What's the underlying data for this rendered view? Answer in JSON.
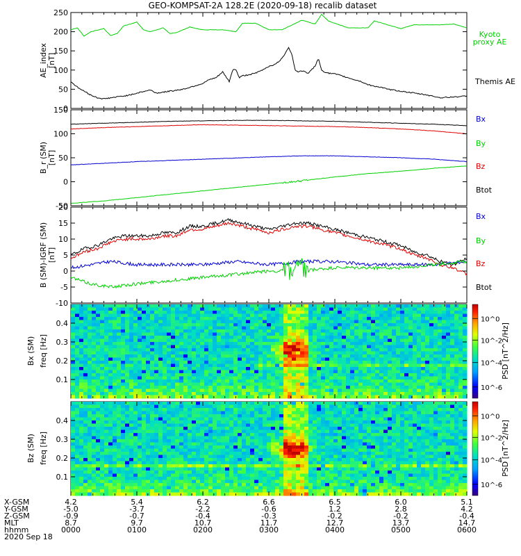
{
  "title": "GEO-KOMPSAT-2A 128.2E (2020-09-18) recalib dataset",
  "colors": {
    "black": "#000000",
    "red": "#e00000",
    "green": "#00d000",
    "blue": "#0000d0"
  },
  "chart_data": [
    {
      "type": "line",
      "panel": "ae",
      "ylabel": "AE_index [nT]",
      "ylim": [
        0,
        250
      ],
      "yticks": [
        "0",
        "50",
        "100",
        "150",
        "200",
        "250"
      ],
      "xlim_hours": [
        0,
        6
      ],
      "series": [
        {
          "name": "Kyoto proxy AE",
          "color": "green",
          "x": [
            0,
            0.1,
            0.2,
            0.3,
            0.5,
            0.6,
            0.7,
            0.8,
            1.0,
            1.1,
            1.2,
            1.4,
            1.5,
            1.6,
            1.8,
            2.0,
            2.3,
            2.5,
            2.6,
            2.8,
            3.0,
            3.2,
            3.5,
            3.7,
            3.8,
            3.9,
            4.0,
            4.2,
            4.5,
            4.6,
            5.0,
            5.2,
            5.4,
            5.6,
            5.8,
            6.0
          ],
          "y": [
            205,
            210,
            188,
            200,
            208,
            190,
            195,
            215,
            225,
            205,
            200,
            210,
            195,
            198,
            212,
            205,
            205,
            200,
            222,
            222,
            205,
            205,
            230,
            220,
            245,
            228,
            222,
            210,
            210,
            228,
            208,
            218,
            218,
            218,
            220,
            210
          ]
        },
        {
          "name": "Themis AE",
          "color": "black",
          "x": [
            0,
            0.1,
            0.2,
            0.3,
            0.4,
            0.5,
            0.7,
            0.9,
            1.0,
            1.2,
            1.3,
            1.5,
            1.7,
            1.8,
            1.9,
            2.0,
            2.05,
            2.1,
            2.2,
            2.3,
            2.4,
            2.45,
            2.5,
            2.55,
            2.6,
            2.7,
            2.8,
            2.9,
            3.0,
            3.1,
            3.2,
            3.3,
            3.35,
            3.4,
            3.45,
            3.5,
            3.6,
            3.7,
            3.75,
            3.8,
            3.85,
            3.9,
            4.0,
            4.1,
            4.2,
            4.4,
            4.5,
            4.6,
            4.7,
            4.8,
            5.0,
            5.2,
            5.4,
            5.6,
            5.8,
            6.0
          ],
          "y": [
            70,
            55,
            45,
            35,
            28,
            25,
            30,
            35,
            40,
            48,
            40,
            45,
            50,
            55,
            60,
            65,
            70,
            75,
            80,
            95,
            70,
            100,
            102,
            80,
            85,
            88,
            92,
            100,
            110,
            115,
            130,
            160,
            140,
            100,
            95,
            98,
            92,
            110,
            130,
            100,
            95,
            92,
            90,
            85,
            80,
            70,
            62,
            58,
            55,
            50,
            45,
            40,
            35,
            28,
            30,
            32
          ]
        }
      ]
    },
    {
      "type": "line",
      "panel": "b",
      "ylabel": "B_r (SM) [nT]",
      "ylim": [
        -50,
        150
      ],
      "yticks": [
        "-50",
        "0",
        "50",
        "100",
        "150"
      ],
      "legend": [
        "Bx",
        "By",
        "Bz",
        "Btot"
      ],
      "xlim_hours": [
        0,
        6
      ],
      "series": [
        {
          "name": "Bx",
          "color": "blue",
          "x": [
            0,
            1,
            2,
            3,
            3.5,
            4,
            4.5,
            5,
            5.5,
            6
          ],
          "y": [
            35,
            42,
            47,
            52,
            54,
            54,
            52,
            50,
            47,
            42
          ]
        },
        {
          "name": "By",
          "color": "green",
          "x": [
            0,
            0.5,
            1,
            1.5,
            2,
            2.5,
            3,
            3.5,
            4,
            4.5,
            5,
            5.5,
            6
          ],
          "y": [
            -45,
            -40,
            -33,
            -26,
            -19,
            -12,
            -5,
            2,
            10,
            17,
            22,
            28,
            33
          ]
        },
        {
          "name": "Bz",
          "color": "red",
          "x": [
            0,
            0.5,
            1,
            1.5,
            2,
            2.5,
            3,
            3.5,
            4,
            4.5,
            5,
            5.5,
            6
          ],
          "y": [
            110,
            113,
            115,
            117,
            119,
            118,
            117,
            116,
            115,
            113,
            110,
            106,
            100
          ]
        },
        {
          "name": "Btot",
          "color": "black",
          "x": [
            0,
            0.5,
            1,
            1.5,
            2,
            2.5,
            3,
            3.5,
            4,
            4.5,
            5,
            5.5,
            6
          ],
          "y": [
            120,
            122,
            124,
            126,
            127,
            128,
            128,
            127,
            126,
            124,
            122,
            120,
            117
          ]
        }
      ]
    },
    {
      "type": "line",
      "panel": "db",
      "ylabel": "B (SM)-IGRF (SM) [nT]",
      "ylim": [
        -10,
        20
      ],
      "yticks": [
        "-10",
        "-5",
        "0",
        "5",
        "10",
        "15",
        "20"
      ],
      "legend": [
        "Bx",
        "By",
        "Bz",
        "Btot"
      ],
      "xlim_hours": [
        0,
        6
      ],
      "series": [
        {
          "name": "Btot",
          "color": "black",
          "x": [
            0,
            0.2,
            0.4,
            0.6,
            0.8,
            1.0,
            1.2,
            1.4,
            1.6,
            1.8,
            2.0,
            2.2,
            2.4,
            2.6,
            2.8,
            3.0,
            3.2,
            3.4,
            3.6,
            3.8,
            4.0,
            4.2,
            4.4,
            4.6,
            4.8,
            5.0,
            5.2,
            5.4,
            5.6,
            5.8,
            6.0
          ],
          "y": [
            5,
            7,
            8,
            10,
            11,
            11,
            11,
            12,
            12,
            14,
            14,
            15,
            16,
            15,
            14,
            13,
            14,
            15,
            15,
            14,
            13,
            12,
            11,
            10,
            9,
            8,
            6,
            5,
            3,
            2,
            4
          ]
        },
        {
          "name": "Bz",
          "color": "red",
          "x": [
            0,
            0.2,
            0.4,
            0.6,
            0.8,
            1.0,
            1.2,
            1.4,
            1.6,
            1.8,
            2.0,
            2.2,
            2.4,
            2.6,
            2.8,
            3.0,
            3.2,
            3.4,
            3.6,
            3.8,
            4.0,
            4.2,
            4.4,
            4.6,
            4.8,
            5.0,
            5.2,
            5.4,
            5.6,
            5.8,
            6.0
          ],
          "y": [
            4,
            6,
            7,
            9,
            10,
            10,
            10,
            11,
            11,
            13,
            13,
            14,
            15,
            14,
            13,
            12,
            13,
            14,
            14,
            13,
            12,
            11,
            10,
            9,
            8,
            7,
            5,
            4,
            2,
            1,
            -1
          ]
        },
        {
          "name": "Bx",
          "color": "blue",
          "x": [
            0,
            0.3,
            0.6,
            1.0,
            1.5,
            2.0,
            2.5,
            3.0,
            3.5,
            4.0,
            4.5,
            5.0,
            5.5,
            6.0
          ],
          "y": [
            1,
            2,
            3,
            2,
            2,
            2,
            3,
            2,
            3,
            3,
            2,
            2,
            2,
            3
          ]
        },
        {
          "name": "By",
          "color": "green",
          "x": [
            0,
            0.3,
            0.6,
            1.0,
            1.5,
            2.0,
            2.5,
            3.0,
            3.5,
            4.0,
            4.5,
            5.0,
            5.5,
            6.0
          ],
          "y": [
            -2,
            -4,
            -5,
            -4,
            -3,
            -2,
            -1,
            0,
            0,
            1,
            1,
            1,
            2,
            3
          ]
        }
      ]
    },
    {
      "type": "heatmap",
      "panel": "spec-bx",
      "ylabel": "Bx (SM) freq [Hz]",
      "ylim": [
        0,
        0.5
      ],
      "yticks": [
        "0.1",
        "0.2",
        "0.3",
        "0.4"
      ],
      "colorbar": {
        "label": "PSD [nT^2/Hz]",
        "ticks": [
          "10^0",
          "10^-2",
          "10^-4",
          "10^-6"
        ]
      },
      "xlim_hours": [
        0,
        6
      ]
    },
    {
      "type": "heatmap",
      "panel": "spec-bz",
      "ylabel": "Bz (SM) freq [Hz]",
      "ylim": [
        0,
        0.5
      ],
      "yticks": [
        "0.1",
        "0.2",
        "0.3",
        "0.4"
      ],
      "colorbar": {
        "label": "PSD [nT^2/Hz]",
        "ticks": [
          "10^0",
          "10^-2",
          "10^-4",
          "10^-6"
        ]
      },
      "xlim_hours": [
        0,
        6
      ]
    }
  ],
  "labels": {
    "kyoto": [
      "Kyoto",
      "proxy AE"
    ],
    "themis": "Themis AE",
    "legend_bx": "Bx",
    "legend_by": "By",
    "legend_bz": "Bz",
    "legend_btot": "Btot",
    "ae_ylabel": [
      "AE_index",
      "[nT]"
    ],
    "b_ylabel": [
      "B_r (SM)",
      "[nT]"
    ],
    "db_ylabel": [
      "B (SM)-IGRF (SM)",
      "[nT]"
    ],
    "spec_bx_ylabel": [
      "Bx (SM)",
      "freq [Hz]"
    ],
    "spec_bz_ylabel": [
      "Bz (SM)",
      "freq [Hz]"
    ],
    "psd_label": "PSD [nT^2/Hz]"
  },
  "xaxis_table": {
    "rows": [
      {
        "label": "X-GSM",
        "values": [
          "4.2",
          "5.4",
          "6.2",
          "6.6",
          "6.5",
          "6.0",
          "5.1"
        ]
      },
      {
        "label": "Y-GSM",
        "values": [
          "-5.0",
          "-3.7",
          "-2.2",
          "-0.6",
          "1.2",
          "2.8",
          "4.2"
        ]
      },
      {
        "label": "Z-GSM",
        "values": [
          "-0.9",
          "-0.7",
          "-0.4",
          "-0.3",
          "-0.2",
          "-0.2",
          "-0.4"
        ]
      },
      {
        "label": "MLT",
        "values": [
          "8.7",
          "9.7",
          "10.7",
          "11.7",
          "12.7",
          "13.7",
          "14.7"
        ]
      },
      {
        "label": "hhmm",
        "values": [
          "0000",
          "0100",
          "0200",
          "0300",
          "0400",
          "0500",
          "0600"
        ]
      }
    ],
    "date": "2020 Sep 18"
  }
}
